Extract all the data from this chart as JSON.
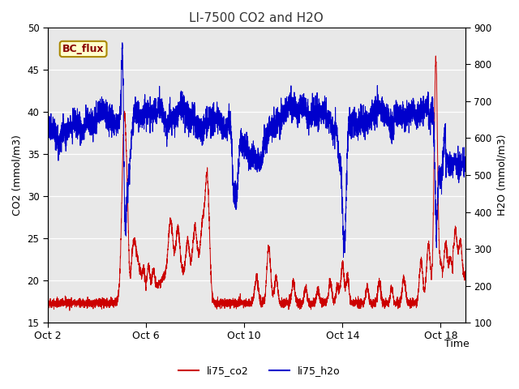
{
  "title": "LI-7500 CO2 and H2O",
  "xlabel": "Time",
  "ylabel_left": "CO2 (mmol/m3)",
  "ylabel_right": "H2O (mmol/m3)",
  "ylim_left": [
    15,
    50
  ],
  "ylim_right": [
    100,
    900
  ],
  "yticks_left": [
    15,
    20,
    25,
    30,
    35,
    40,
    45,
    50
  ],
  "yticks_right": [
    100,
    200,
    300,
    400,
    500,
    600,
    700,
    800,
    900
  ],
  "x_tick_labels": [
    "Oct 2",
    "Oct 6",
    "Oct 10",
    "Oct 14",
    "Oct 18"
  ],
  "x_tick_positions": [
    0,
    4,
    8,
    12,
    16
  ],
  "xlim": [
    0,
    17
  ],
  "legend_label1": "li75_co2",
  "legend_label2": "li75_h2o",
  "legend_color1": "#cc0000",
  "legend_color2": "#0000cc",
  "bc_flux_bg": "#ffffcc",
  "bc_flux_border": "#aa8800",
  "bc_flux_text": "#880000",
  "plot_bg": "#e8e8e8",
  "grid_color": "#ffffff",
  "n_points": 5000,
  "x_start": 0,
  "x_end": 17
}
